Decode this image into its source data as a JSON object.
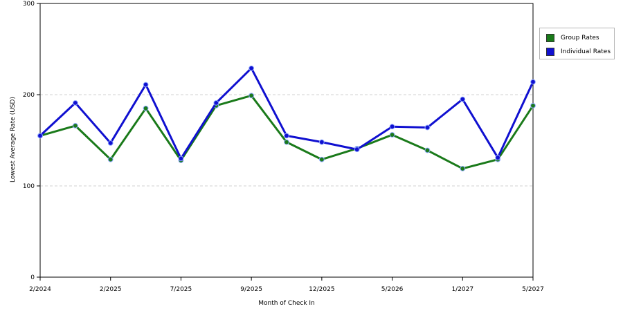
{
  "chart_data": {
    "type": "line",
    "xlabel": "Month of Check In",
    "ylabel": "Lowest Average Rate (USD)",
    "ylim": [
      0,
      300
    ],
    "yticks": [
      0,
      100,
      200,
      300
    ],
    "grid": "horizontal-dashed",
    "legend_position": "right",
    "x_tick_labels": [
      "2/2024",
      "2/2025",
      "7/2025",
      "9/2025",
      "12/2025",
      "5/2026",
      "1/2027",
      "5/2027"
    ],
    "x_tick_indices": [
      0,
      2,
      4,
      6,
      8,
      10,
      12,
      14
    ],
    "series": [
      {
        "name": "Group Rates",
        "color": "#1a7a1a",
        "values": [
          155,
          166,
          129,
          185,
          128,
          188,
          199,
          148,
          129,
          141,
          156,
          139,
          119,
          129,
          188
        ]
      },
      {
        "name": "Individual Rates",
        "color": "#1010d0",
        "values": [
          155,
          191,
          147,
          211,
          130,
          191,
          229,
          155,
          148,
          140,
          165,
          164,
          195,
          131,
          214
        ]
      }
    ]
  }
}
